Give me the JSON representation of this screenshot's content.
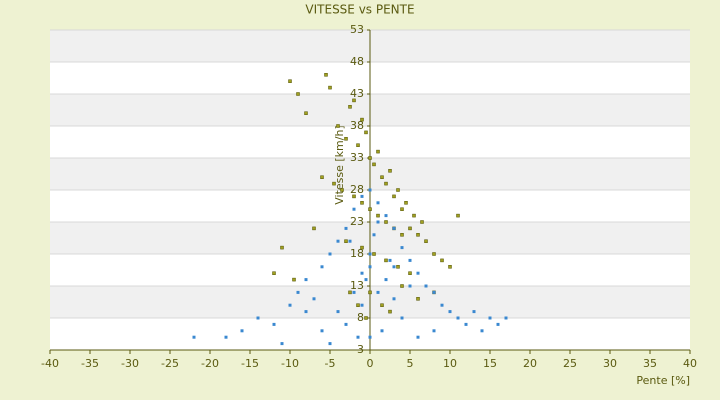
{
  "chart_data": {
    "type": "scatter",
    "title": "VITESSE vs PENTE",
    "x_label": "Pente [%]",
    "y_label": "Vitesse [km/h]",
    "xlim": [
      -40,
      40
    ],
    "xticks": [
      -40,
      -35,
      -30,
      -25,
      -20,
      -15,
      -10,
      -5,
      0,
      5,
      10,
      15,
      20,
      25,
      30,
      35,
      40
    ],
    "ylim": [
      3,
      53
    ],
    "yticks": [
      3,
      8,
      13,
      18,
      23,
      28,
      33,
      38,
      43,
      48,
      53
    ],
    "grid": true,
    "series": [
      {
        "color": "#a0a020",
        "x": [
          -10,
          -9,
          -8,
          -5.5,
          -5,
          -4,
          -3,
          -2.5,
          -2,
          -1.5,
          -1,
          -0.5,
          0,
          0.5,
          1,
          1.5,
          2,
          2.5,
          3,
          3.5,
          4,
          4.5,
          5,
          5.5,
          6,
          6.5,
          7,
          8,
          9,
          11,
          -6,
          -4.5,
          -3.5,
          -2,
          -1,
          0,
          1,
          2,
          3,
          4,
          -7,
          -3,
          -1,
          0.5,
          2,
          3.5,
          5,
          -12,
          -11,
          -9.5,
          -2.5,
          -1.5,
          1.5,
          0,
          -0.5,
          2.5,
          4,
          6,
          8,
          10
        ],
        "values": [
          45,
          43,
          40,
          46,
          44,
          38,
          36,
          41,
          42,
          35,
          39,
          37,
          33,
          32,
          34,
          30,
          29,
          31,
          27,
          28,
          25,
          26,
          22,
          24,
          21,
          23,
          20,
          18,
          17,
          24,
          30,
          29,
          28,
          27,
          26,
          25,
          24,
          23,
          22,
          21,
          22,
          20,
          19,
          18,
          17,
          16,
          15,
          15,
          19,
          14,
          12,
          10,
          10,
          12,
          8,
          9,
          13,
          11,
          12,
          16
        ]
      },
      {
        "color": "#3a88d0",
        "x": [
          -22,
          -18,
          -16,
          -14,
          -12,
          -10,
          -9,
          -8,
          -7,
          -6,
          -5,
          -4,
          -3,
          -2,
          -1,
          0,
          1,
          2,
          3,
          4,
          5,
          6,
          7,
          8,
          9,
          10,
          11,
          12,
          13,
          14,
          15,
          16,
          17,
          -6,
          -4,
          -2,
          -1,
          0,
          0.5,
          1,
          2,
          3,
          -3,
          -1.5,
          0,
          1.5,
          4,
          6,
          8,
          -11,
          -5,
          -2.5,
          0,
          2.5,
          5,
          -8,
          -1,
          1,
          3,
          -0.5
        ],
        "values": [
          5,
          5,
          6,
          8,
          7,
          10,
          12,
          14,
          11,
          16,
          18,
          20,
          22,
          25,
          27,
          28,
          26,
          24,
          22,
          19,
          17,
          15,
          13,
          12,
          10,
          9,
          8,
          7,
          9,
          6,
          8,
          7,
          8,
          6,
          9,
          12,
          15,
          18,
          21,
          23,
          14,
          11,
          7,
          5,
          5,
          6,
          8,
          5,
          6,
          4,
          4,
          20,
          16,
          17,
          13,
          9,
          10,
          12,
          16,
          14
        ]
      }
    ]
  }
}
